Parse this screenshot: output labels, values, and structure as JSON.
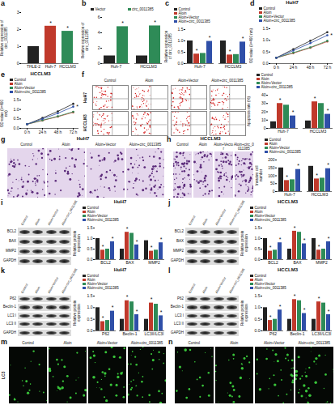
{
  "chart_data": [
    {
      "panel": "a",
      "type": "bar",
      "categories": [
        "THLE-2",
        "Huh-7",
        "HCCLM3"
      ],
      "values": [
        1.0,
        2.2,
        1.9
      ],
      "colors": [
        "#222222",
        "#c0392b",
        "#2e8b57"
      ],
      "ylabel": "Relative expression of circ_0011385",
      "ylim": [
        0,
        3
      ],
      "yticks": [
        0,
        1,
        2,
        3
      ],
      "annotations": [
        {
          "text": "*",
          "category": "Huh-7"
        },
        {
          "text": "*",
          "category": "HCCLM3"
        }
      ]
    },
    {
      "panel": "b",
      "type": "bar",
      "categories": [
        "Huh-7",
        "HCCLM3"
      ],
      "legend": "top",
      "series": [
        {
          "name": "Vector",
          "color": "#222222",
          "values": [
            1.0,
            1.0
          ]
        },
        {
          "name": "circ_0011385",
          "color": "#2e8b57",
          "values": [
            4.8,
            4.9
          ]
        }
      ],
      "ylabel": "Relative expression of circ_0011385",
      "ylim": [
        0,
        6
      ],
      "yticks": [
        0,
        2,
        4,
        6
      ],
      "annotations": [
        {
          "text": "*",
          "category": "Huh-7",
          "series": "circ_0011385"
        },
        {
          "text": "*",
          "category": "HCCLM3",
          "series": "circ_0011385"
        }
      ]
    },
    {
      "panel": "c",
      "type": "bar",
      "categories": [
        "Huh-7",
        "HCCLM3"
      ],
      "legend": "top",
      "series": [
        {
          "name": "Control",
          "color": "#222222",
          "values": [
            1.0,
            1.0
          ]
        },
        {
          "name": "Aloin",
          "color": "#c0392b",
          "values": [
            0.42,
            0.38
          ]
        },
        {
          "name": "Aloin+Vector",
          "color": "#2e8b57",
          "values": [
            0.45,
            0.4
          ]
        },
        {
          "name": "Aloin+circ_0011385",
          "color": "#2f4fa8",
          "values": [
            0.98,
            0.95
          ]
        }
      ],
      "ylabel": "Relative expression of circ_0011385",
      "ylim": [
        0,
        1.5
      ],
      "yticks": [
        {
          "value": 0,
          "label": "0.0"
        },
        0.5,
        {
          "value": 1,
          "label": "1.0"
        },
        1.5
      ],
      "annotations": [
        {
          "text": "*",
          "category": "Huh-7",
          "series": "Aloin"
        },
        {
          "text": "*",
          "category": "Huh-7",
          "series": "Aloin+circ_0011385"
        },
        {
          "text": "*",
          "category": "HCCLM3",
          "series": "Aloin"
        },
        {
          "text": "*",
          "category": "HCCLM3",
          "series": "Aloin+circ_0011385"
        }
      ]
    },
    {
      "panel": "d",
      "type": "line",
      "title": "HuH7",
      "x": [
        "0 h",
        "24 h",
        "48 h",
        "72 h"
      ],
      "legend": "top",
      "marker": "circle",
      "series": [
        {
          "name": "Control",
          "color": "#222222",
          "values": [
            0.25,
            0.62,
            0.98,
            1.35
          ]
        },
        {
          "name": "Aloin",
          "color": "#c0392b",
          "values": [
            0.25,
            0.45,
            0.68,
            0.95
          ]
        },
        {
          "name": "Aloin+Vector",
          "color": "#2e8b57",
          "values": [
            0.25,
            0.47,
            0.7,
            0.98
          ]
        },
        {
          "name": "Aloin+circ_0011385",
          "color": "#2f4fa8",
          "values": [
            0.25,
            0.56,
            0.88,
            1.22
          ]
        }
      ],
      "ylabel": "OD value (λ=490 nm)",
      "ylim": [
        0,
        1.5
      ],
      "yticks": [
        {
          "value": 0,
          "label": "0.0"
        },
        0.5,
        {
          "value": 1,
          "label": "1.0"
        },
        1.5
      ],
      "annotations": [
        {
          "text": "*",
          "category": "72 h",
          "series": "Aloin+circ_0011385"
        }
      ]
    },
    {
      "panel": "e",
      "type": "line",
      "title": "HCCLM3",
      "x": [
        "0 h",
        "24 h",
        "48 h",
        "72 h"
      ],
      "legend": "top",
      "marker": "circle",
      "series": [
        {
          "name": "Control",
          "color": "#222222",
          "values": [
            0.22,
            0.55,
            0.9,
            1.3
          ]
        },
        {
          "name": "Aloin",
          "color": "#c0392b",
          "values": [
            0.22,
            0.42,
            0.62,
            0.85
          ]
        },
        {
          "name": "Aloin+Vector",
          "color": "#2e8b57",
          "values": [
            0.22,
            0.43,
            0.64,
            0.88
          ]
        },
        {
          "name": "Aloin+circ_0011385",
          "color": "#2f4fa8",
          "values": [
            0.22,
            0.5,
            0.8,
            1.15
          ]
        }
      ],
      "ylabel": "OD value (λ=490 nm)",
      "ylim": [
        0,
        1.5
      ],
      "yticks": [
        {
          "value": 0,
          "label": "0.0"
        },
        0.5,
        {
          "value": 1,
          "label": "1.0"
        },
        1.5
      ],
      "annotations": [
        {
          "text": "*",
          "category": "72 h",
          "series": "Aloin+circ_0011385"
        }
      ]
    },
    {
      "type": "bar",
      "categories": [
        "Huh-7",
        "HCCLM3"
      ],
      "legend": "top",
      "series": [
        {
          "name": "Control",
          "color": "#222222",
          "values": [
            8,
            9
          ]
        },
        {
          "name": "Aloin",
          "color": "#c0392b",
          "values": [
            30,
            32
          ]
        },
        {
          "name": "Aloin+Vector",
          "color": "#2e8b57",
          "values": [
            28,
            30
          ]
        },
        {
          "name": "Aloin+circ_0011385",
          "color": "#2f4fa8",
          "values": [
            15,
            17
          ]
        }
      ],
      "ylabel": "Apoptosis rate (%)",
      "ylim": [
        0,
        40
      ],
      "yticks": [
        0,
        10,
        20,
        30,
        40
      ],
      "annotations": [
        {
          "text": "*",
          "category": "Huh-7",
          "series": "Aloin"
        },
        {
          "text": "*",
          "category": "Huh-7",
          "series": "Aloin+circ_0011385"
        },
        {
          "text": "*",
          "category": "HCCLM3",
          "series": "Aloin"
        },
        {
          "text": "*",
          "category": "HCCLM3",
          "series": "Aloin+circ_0011385"
        }
      ]
    },
    {
      "type": "bar",
      "categories": [
        "Huh-7",
        "HCCLM3"
      ],
      "legend": "top",
      "series": [
        {
          "name": "Control",
          "color": "#222222",
          "values": [
            150,
            160
          ]
        },
        {
          "name": "Aloin",
          "color": "#c0392b",
          "values": [
            70,
            80
          ]
        },
        {
          "name": "Aloin+Vector",
          "color": "#2e8b57",
          "values": [
            75,
            85
          ]
        },
        {
          "name": "Aloin+circ_0011385",
          "color": "#2f4fa8",
          "values": [
            140,
            145
          ]
        }
      ],
      "ylabel": "Invasive cell number",
      "ylim": [
        0,
        200
      ],
      "yticks": [
        0,
        50,
        100,
        150,
        200
      ],
      "annotations": [
        {
          "text": "*",
          "category": "Huh-7",
          "series": "Aloin"
        },
        {
          "text": "*",
          "category": "Huh-7",
          "series": "Aloin+circ_0011385"
        },
        {
          "text": "*",
          "category": "HCCLM3",
          "series": "Aloin"
        },
        {
          "text": "*",
          "category": "HCCLM3",
          "series": "Aloin+circ_0011385"
        }
      ]
    },
    {
      "type": "bar",
      "title": "HuH7",
      "categories": [
        "BCL2",
        "BAX",
        "MMP2"
      ],
      "legend": "top",
      "series": [
        {
          "name": "Control",
          "color": "#222222",
          "values": [
            1.0,
            0.5,
            0.9
          ]
        },
        {
          "name": "Aloin",
          "color": "#c0392b",
          "values": [
            0.45,
            1.3,
            0.4
          ]
        },
        {
          "name": "Aloin+Vector",
          "color": "#2e8b57",
          "values": [
            0.5,
            1.25,
            0.45
          ]
        },
        {
          "name": "Aloin+circ_0011385",
          "color": "#2f4fa8",
          "values": [
            0.85,
            0.7,
            0.8
          ]
        }
      ],
      "ylabel": "Relative protein expression",
      "ylim": [
        0,
        1.5
      ],
      "yticks": [
        {
          "value": 0,
          "label": "0.0"
        },
        0.5,
        {
          "value": 1,
          "label": "1.0"
        },
        1.5
      ],
      "annotations": [
        {
          "text": "*",
          "category": "BCL2",
          "series": "Aloin"
        },
        {
          "text": "*",
          "category": "BCL2",
          "series": "Aloin+circ_0011385"
        },
        {
          "text": "*",
          "category": "BAX",
          "series": "Aloin"
        },
        {
          "text": "*",
          "category": "BAX",
          "series": "Aloin+circ_0011385"
        },
        {
          "text": "*",
          "category": "MMP2",
          "series": "Aloin"
        },
        {
          "text": "*",
          "category": "MMP2",
          "series": "Aloin+circ_0011385"
        }
      ]
    },
    {
      "type": "bar",
      "title": "HCCLM3",
      "categories": [
        "BCL2",
        "BAX",
        "MMP2"
      ],
      "legend": "top",
      "series": [
        {
          "name": "Control",
          "color": "#222222",
          "values": [
            1.0,
            0.5,
            1.0
          ]
        },
        {
          "name": "Aloin",
          "color": "#c0392b",
          "values": [
            0.4,
            1.35,
            0.45
          ]
        },
        {
          "name": "Aloin+Vector",
          "color": "#2e8b57",
          "values": [
            0.45,
            1.3,
            0.5
          ]
        },
        {
          "name": "Aloin+circ_0011385",
          "color": "#2f4fa8",
          "values": [
            0.8,
            0.75,
            0.85
          ]
        }
      ],
      "ylabel": "Relative protein expression",
      "ylim": [
        0,
        1.5
      ],
      "yticks": [
        {
          "value": 0,
          "label": "0.0"
        },
        0.5,
        {
          "value": 1,
          "label": "1.0"
        },
        1.5
      ],
      "annotations": [
        {
          "text": "*",
          "category": "BCL2",
          "series": "Aloin"
        },
        {
          "text": "*",
          "category": "BCL2",
          "series": "Aloin+circ_0011385"
        },
        {
          "text": "*",
          "category": "BAX",
          "series": "Aloin"
        },
        {
          "text": "*",
          "category": "BAX",
          "series": "Aloin+circ_0011385"
        },
        {
          "text": "*",
          "category": "MMP2",
          "series": "Aloin"
        },
        {
          "text": "*",
          "category": "MMP2",
          "series": "Aloin+circ_0011385"
        }
      ]
    },
    {
      "type": "bar",
      "title": "HuH7",
      "categories": [
        "P62",
        "Beclin-1",
        "LC3II/LC3I"
      ],
      "legend": "top",
      "series": [
        {
          "name": "Control",
          "color": "#222222",
          "values": [
            1.0,
            0.5,
            0.5
          ]
        },
        {
          "name": "Aloin",
          "color": "#c0392b",
          "values": [
            0.4,
            1.3,
            1.2
          ]
        },
        {
          "name": "Aloin+Vector",
          "color": "#2e8b57",
          "values": [
            0.45,
            1.25,
            1.15
          ]
        },
        {
          "name": "Aloin+circ_0011385",
          "color": "#2f4fa8",
          "values": [
            0.85,
            0.7,
            0.65
          ]
        }
      ],
      "ylabel": "Relative protein expression",
      "ylim": [
        0,
        1.5
      ],
      "yticks": [
        {
          "value": 0,
          "label": "0.0"
        },
        0.5,
        {
          "value": 1,
          "label": "1.0"
        },
        1.5
      ],
      "annotations": [
        {
          "text": "*",
          "category": "P62",
          "series": "Aloin"
        },
        {
          "text": "*",
          "category": "P62",
          "series": "Aloin+circ_0011385"
        },
        {
          "text": "*",
          "category": "Beclin-1",
          "series": "Aloin"
        },
        {
          "text": "*",
          "category": "Beclin-1",
          "series": "Aloin+circ_0011385"
        },
        {
          "text": "*",
          "category": "LC3II/LC3I",
          "series": "Aloin"
        },
        {
          "text": "*",
          "category": "LC3II/LC3I",
          "series": "Aloin+circ_0011385"
        }
      ]
    },
    {
      "type": "bar",
      "title": "HCCLM3",
      "categories": [
        "P62",
        "Beclin-1",
        "LC3II/LC3I"
      ],
      "legend": "top",
      "series": [
        {
          "name": "Control",
          "color": "#222222",
          "values": [
            1.0,
            0.5,
            0.5
          ]
        },
        {
          "name": "Aloin",
          "color": "#c0392b",
          "values": [
            0.45,
            1.35,
            1.25
          ]
        },
        {
          "name": "Aloin+Vector",
          "color": "#2e8b57",
          "values": [
            0.5,
            1.3,
            1.2
          ]
        },
        {
          "name": "Aloin+circ_0011385",
          "color": "#2f4fa8",
          "values": [
            0.9,
            0.75,
            0.7
          ]
        }
      ],
      "ylabel": "Relative protein expression",
      "ylim": [
        0,
        1.5
      ],
      "yticks": [
        {
          "value": 0,
          "label": "0.0"
        },
        0.5,
        {
          "value": 1,
          "label": "1.0"
        },
        1.5
      ],
      "annotations": [
        {
          "text": "*",
          "category": "P62",
          "series": "Aloin"
        },
        {
          "text": "*",
          "category": "P62",
          "series": "Aloin+circ_0011385"
        },
        {
          "text": "*",
          "category": "Beclin-1",
          "series": "Aloin"
        },
        {
          "text": "*",
          "category": "Beclin-1",
          "series": "Aloin+circ_0011385"
        },
        {
          "text": "*",
          "category": "LC3II/LC3I",
          "series": "Aloin"
        },
        {
          "text": "*",
          "category": "LC3II/LC3I",
          "series": "Aloin+circ_0011385"
        }
      ]
    }
  ],
  "panels": [
    {
      "panel": "f",
      "columns": [
        "Control",
        "Aloin",
        "Aloin+Vector",
        "Aloin+circ_0011385"
      ],
      "rows": [
        "HuH7",
        "HCCLM3"
      ]
    },
    {
      "panel": "g",
      "title": "HuH7",
      "columns": [
        "Control",
        "Aloin",
        "Aloin+Vector",
        "Aloin+circ_0011385"
      ]
    },
    {
      "panel": "h",
      "title": "HCCLM3",
      "columns": [
        "Control",
        "Aloin",
        "Aloin+Vector",
        "Aloin+circ_0011385"
      ]
    },
    {
      "panel": "i",
      "columns": [
        "Control",
        "Aloin",
        "Aloin+Vector",
        "Aloin+circ_0011385"
      ],
      "rows": [
        "BCL2",
        "BAX",
        "MMP2",
        "GAPDH"
      ]
    },
    {
      "panel": "j",
      "columns": [
        "Control",
        "Aloin",
        "Aloin+Vector",
        "Aloin+circ_0011385"
      ],
      "rows": [
        "BCL2",
        "BAX",
        "MMP2",
        "GAPDH"
      ]
    },
    {
      "panel": "k",
      "columns": [
        "Control",
        "Aloin",
        "Aloin+Vector",
        "Aloin+circ_0011385"
      ],
      "rows": [
        "P62",
        "Beclin-1",
        "LC3 I",
        "LC3 II",
        "GAPDH"
      ]
    },
    {
      "panel": "l",
      "columns": [
        "Control",
        "Aloin",
        "Aloin+Vector",
        "Aloin+circ_0011385"
      ],
      "rows": [
        "P62",
        "Beclin-1",
        "LC3 I",
        "LC3 II",
        "GAPDH"
      ]
    },
    {
      "panel": "m",
      "row_label": "LC3",
      "columns": [
        "Control",
        "Aloin",
        "Aloin+Vector",
        "Aloin+circ_0011385"
      ]
    },
    {
      "panel": "n",
      "columns": [
        "Control",
        "Aloin",
        "Aloin+Vector",
        "Aloin+circ_0011385"
      ]
    }
  ]
}
